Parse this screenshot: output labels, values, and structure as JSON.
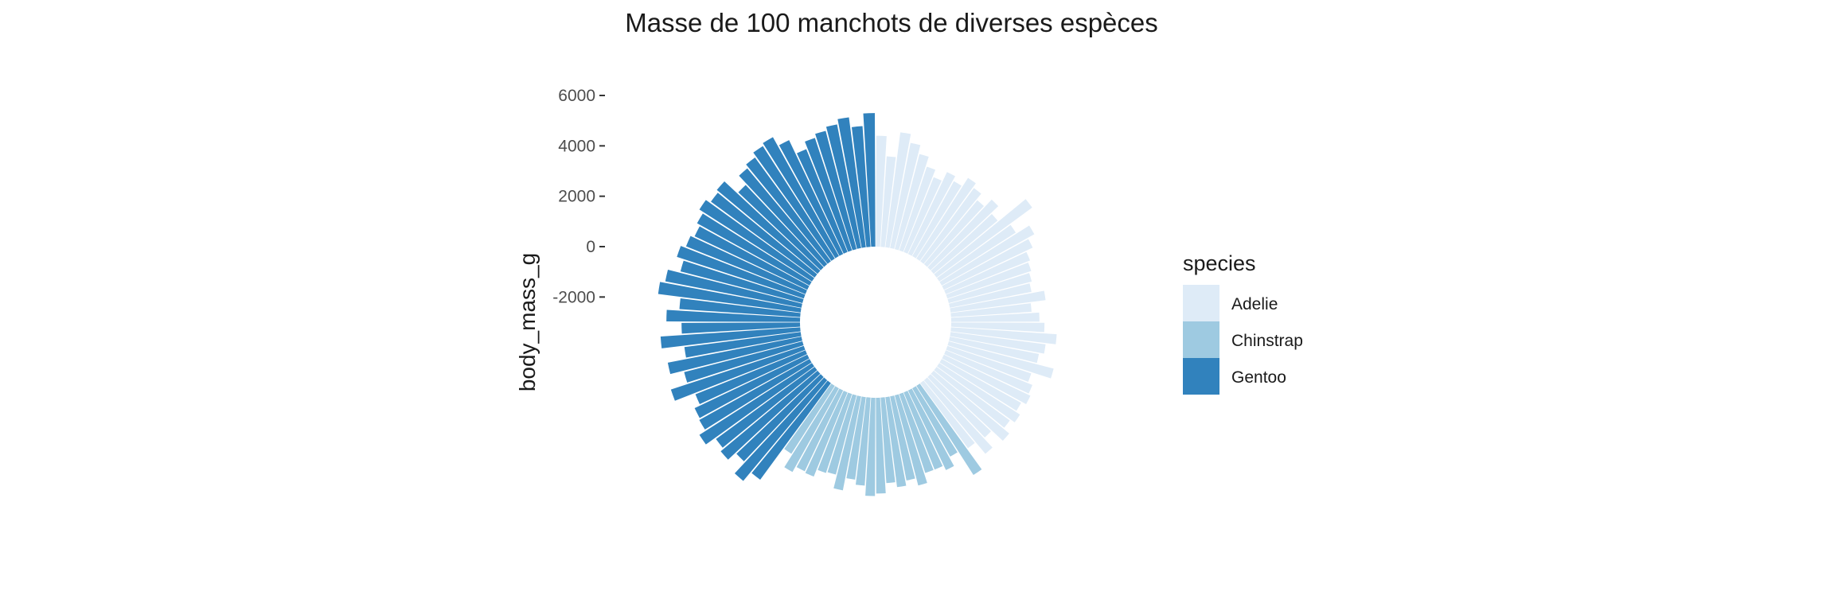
{
  "chart_data": {
    "type": "bar",
    "coord": "polar",
    "title": "Masse de 100 manchots de diverses espèces",
    "xlabel": "",
    "ylabel": "body_mass_g",
    "ylim": [
      -3000,
      6000
    ],
    "yticks": [
      6000,
      4000,
      2000,
      0,
      -2000
    ],
    "yticklabels": [
      "6000",
      "4000",
      "2000",
      "0",
      "-2000"
    ],
    "grid": false,
    "legend": {
      "title": "species",
      "placement": "right",
      "entries": [
        {
          "label": "Adelie",
          "color": "#DEEBF7"
        },
        {
          "label": "Chinstrap",
          "color": "#9ECAE1"
        },
        {
          "label": "Gentoo",
          "color": "#3182BD"
        }
      ]
    },
    "series": [
      {
        "name": "Adelie",
        "color": "#DEEBF7",
        "values": [
          4400,
          3600,
          4600,
          4250,
          3900,
          3500,
          3200,
          3600,
          3400,
          3800,
          3600,
          3300,
          3700,
          3300,
          4700,
          3600,
          4200,
          3900,
          3600,
          3500,
          3400,
          3300,
          3800,
          3200,
          3500,
          3700,
          4200,
          3800,
          3600,
          4300,
          3500,
          3700,
          3800,
          3600,
          3800,
          3600,
          3900,
          3300,
          3800,
          3200
        ]
      },
      {
        "name": "Chinstrap",
        "color": "#9ECAE1",
        "values": [
          4200,
          3100,
          3500,
          3300,
          3300,
          3700,
          3400,
          3600,
          3400,
          3800,
          3900,
          3500,
          3300,
          3800,
          3250,
          3300,
          3600,
          3550,
          3800,
          3200
        ]
      },
      {
        "name": "Gentoo",
        "color": "#3182BD",
        "values": [
          4750,
          5200,
          4600,
          5000,
          4850,
          5300,
          5000,
          4950,
          4700,
          5550,
          4850,
          5400,
          4650,
          5550,
          4700,
          5300,
          4800,
          5700,
          5500,
          5000,
          5300,
          5100,
          4950,
          5100,
          5300,
          5100,
          5200,
          4500,
          4950,
          5100,
          5300,
          5400,
          5000,
          4400,
          4700,
          4850,
          5000,
          5200,
          4800,
          5300
        ]
      }
    ]
  }
}
